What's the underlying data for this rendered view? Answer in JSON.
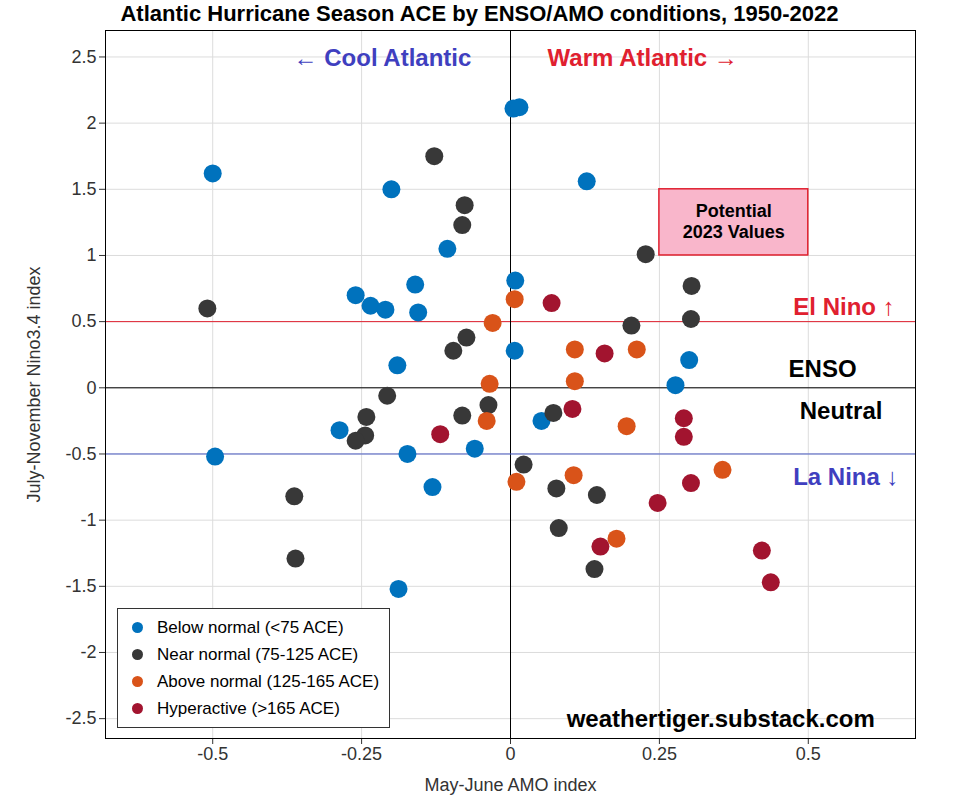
{
  "chart_data": {
    "type": "scatter",
    "title": "Atlantic Hurricane Season ACE by ENSO/AMO conditions, 1950-2022",
    "x_label": "May-June AMO index",
    "y_label": "July-November Nino3.4 index",
    "xlim": [
      -0.68,
      0.68
    ],
    "ylim": [
      -2.65,
      2.7
    ],
    "xticks": [
      -0.5,
      -0.25,
      0,
      0.25,
      0.5
    ],
    "yticks": [
      -2.5,
      -2,
      -1.5,
      -1,
      -0.5,
      0,
      0.5,
      1,
      1.5,
      2,
      2.5
    ],
    "grid": true,
    "legend": "lower left",
    "marker": "circle",
    "series": [
      {
        "name": "Below normal (<75 ACE)",
        "color": "#0072BD",
        "x": [
          -0.5,
          0.005,
          0.015,
          -0.2,
          0.128,
          -0.106,
          -0.26,
          -0.235,
          -0.21,
          -0.16,
          -0.155,
          0.008,
          0.007,
          -0.19,
          0.3,
          0.277,
          -0.287,
          -0.173,
          -0.496,
          -0.06,
          0.052,
          -0.131,
          -0.188
        ],
        "y": [
          1.62,
          2.11,
          2.12,
          1.5,
          1.56,
          1.05,
          0.7,
          0.62,
          0.59,
          0.78,
          0.57,
          0.81,
          0.28,
          0.17,
          0.21,
          0.02,
          -0.32,
          -0.5,
          -0.52,
          -0.46,
          -0.25,
          -0.75,
          -1.52
        ]
      },
      {
        "name": "Near normal (75-125 ACE)",
        "color": "#383838",
        "x": [
          -0.128,
          -0.077,
          -0.081,
          0.227,
          0.304,
          0.303,
          -0.509,
          0.203,
          -0.074,
          -0.096,
          -0.207,
          -0.242,
          -0.081,
          -0.037,
          -0.244,
          -0.26,
          0.072,
          0.022,
          0.077,
          0.145,
          0.081,
          -0.363,
          -0.361,
          0.141
        ],
        "y": [
          1.75,
          1.38,
          1.23,
          1.01,
          0.77,
          0.52,
          0.6,
          0.47,
          0.38,
          0.28,
          -0.06,
          -0.22,
          -0.21,
          -0.13,
          -0.36,
          -0.4,
          -0.19,
          -0.58,
          -0.76,
          -0.81,
          -1.06,
          -0.82,
          -1.29,
          -1.37
        ]
      },
      {
        "name": "Above normal (125-165 ACE)",
        "color": "#D95319",
        "x": [
          0.007,
          -0.03,
          0.108,
          0.212,
          -0.035,
          0.108,
          -0.04,
          0.195,
          0.356,
          0.01,
          0.106,
          0.178
        ],
        "y": [
          0.67,
          0.49,
          0.29,
          0.29,
          0.03,
          0.05,
          -0.25,
          -0.29,
          -0.62,
          -0.71,
          -0.66,
          -1.14
        ]
      },
      {
        "name": "Hyperactive (>165 ACE)",
        "color": "#A2142F",
        "x": [
          0.069,
          0.158,
          -0.118,
          0.104,
          0.291,
          0.291,
          0.303,
          0.247,
          0.151,
          0.422,
          0.437
        ],
        "y": [
          0.64,
          0.26,
          -0.35,
          -0.16,
          -0.23,
          -0.37,
          -0.72,
          -0.87,
          -1.2,
          -1.23,
          -1.47
        ]
      }
    ],
    "reference_lines": [
      {
        "axis": "y",
        "value": 0.5,
        "color": "#e0202f"
      },
      {
        "axis": "y",
        "value": 0,
        "color": "#000000"
      },
      {
        "axis": "x",
        "value": 0,
        "color": "#000000"
      },
      {
        "axis": "y",
        "value": -0.5,
        "color": "#4a5cc4"
      }
    ],
    "annotations": [
      {
        "text": "← Cool Atlantic",
        "x": -0.215,
        "y": 2.5,
        "color": "#3f3fbf"
      },
      {
        "text": "Warm Atlantic →",
        "x": 0.222,
        "y": 2.5,
        "color": "#e0202f"
      },
      {
        "text": "El Nino ↑",
        "x": 0.56,
        "y": 0.62,
        "color": "#e0202f"
      },
      {
        "text": "ENSO",
        "x": 0.524,
        "y": 0.15,
        "color": "#000000"
      },
      {
        "text": "Neutral",
        "x": 0.555,
        "y": -0.17,
        "color": "#000000"
      },
      {
        "text": "La Nina ↓",
        "x": 0.563,
        "y": -0.67,
        "color": "#3f3fbf"
      },
      {
        "text": "weathertiger.substack.com",
        "x": 0.353,
        "y": -2.5,
        "color": "#000000"
      },
      {
        "text": "Potential\n2023 Values",
        "x": 0.375,
        "y": 1.26,
        "color": "#000000",
        "box": {
          "x": [
            0.25,
            0.5
          ],
          "y": [
            1.0,
            1.5
          ],
          "color": "#f9b6cb"
        }
      }
    ]
  }
}
